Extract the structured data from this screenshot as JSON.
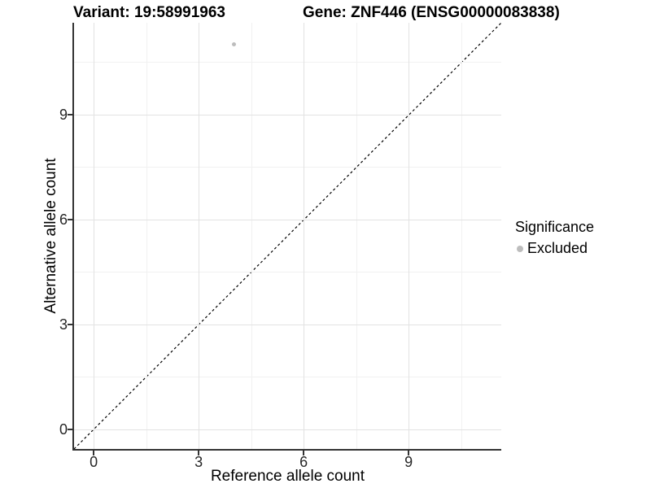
{
  "chart_data": {
    "type": "scatter",
    "title_left": "Variant: 19:58991963",
    "title_right": "Gene: ZNF446 (ENSG00000083838)",
    "xlabel": "Reference allele count",
    "ylabel": "Alternative allele count",
    "xlim": [
      -0.56,
      11.65
    ],
    "ylim": [
      -0.56,
      11.65
    ],
    "x_ticks": [
      0,
      3,
      6,
      9
    ],
    "y_ticks": [
      0,
      3,
      6,
      9
    ],
    "x_minor_ticks": [
      1.5,
      4.5,
      7.5,
      10.5
    ],
    "y_minor_ticks": [
      1.5,
      4.5,
      7.5,
      10.5
    ],
    "grid": "major+minor",
    "points": [
      {
        "x": 4,
        "y": 11,
        "significance": "Excluded",
        "color": "#bdbdbd"
      }
    ],
    "reference_line": {
      "kind": "identity y=x",
      "style": "dashed",
      "color": "#000000"
    },
    "legend": {
      "position": "right",
      "title": "Significance",
      "entries": [
        {
          "label": "Excluded",
          "color": "#bdbdbd"
        }
      ]
    }
  },
  "colors": {
    "grid_major": "#e2e2e2",
    "grid_minor": "#f1f1f1",
    "axis_line": "#333333",
    "point_excluded": "#bdbdbd"
  }
}
